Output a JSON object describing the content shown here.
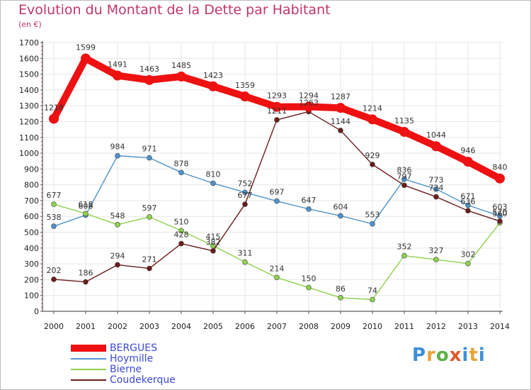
{
  "title": "Evolution du Montant de la Dette par Habitant",
  "subtitle": "(en €)",
  "logo_text": "Proxiti",
  "chart_data": {
    "type": "line",
    "title": "Evolution du Montant de la Dette par Habitant",
    "subtitle": "(en €)",
    "xlabel": "",
    "ylabel": "",
    "x": [
      "2000",
      "2001",
      "2002",
      "2003",
      "2004",
      "2005",
      "2006",
      "2007",
      "2008",
      "2009",
      "2010",
      "2011",
      "2012",
      "2013",
      "2014"
    ],
    "ylim": [
      0,
      1700
    ],
    "yticks": [
      0,
      100,
      200,
      300,
      400,
      500,
      600,
      700,
      800,
      900,
      1000,
      1100,
      1200,
      1300,
      1400,
      1500,
      1600,
      1700
    ],
    "grid": true,
    "legend": "bottom-left",
    "series": [
      {
        "name": "BERGUES",
        "color": "#ee1111",
        "values": [
          1218,
          1599,
          1491,
          1463,
          1485,
          1423,
          1359,
          1293,
          1294,
          1287,
          1214,
          1135,
          1044,
          946,
          840
        ]
      },
      {
        "name": "Hoymille",
        "color": "#4f93cc",
        "values": [
          538,
          608,
          984,
          971,
          878,
          810,
          752,
          697,
          647,
          604,
          553,
          836,
          773,
          671,
          603
        ]
      },
      {
        "name": "Bierne",
        "color": "#8fd14f",
        "values": [
          677,
          618,
          548,
          597,
          510,
          415,
          311,
          214,
          150,
          86,
          74,
          352,
          327,
          302,
          560
        ]
      },
      {
        "name": "Coudekerque",
        "color": "#6b1c1c",
        "values": [
          202,
          186,
          294,
          271,
          428,
          382,
          677,
          1211,
          1263,
          1144,
          929,
          797,
          724,
          636,
          570
        ]
      }
    ]
  }
}
